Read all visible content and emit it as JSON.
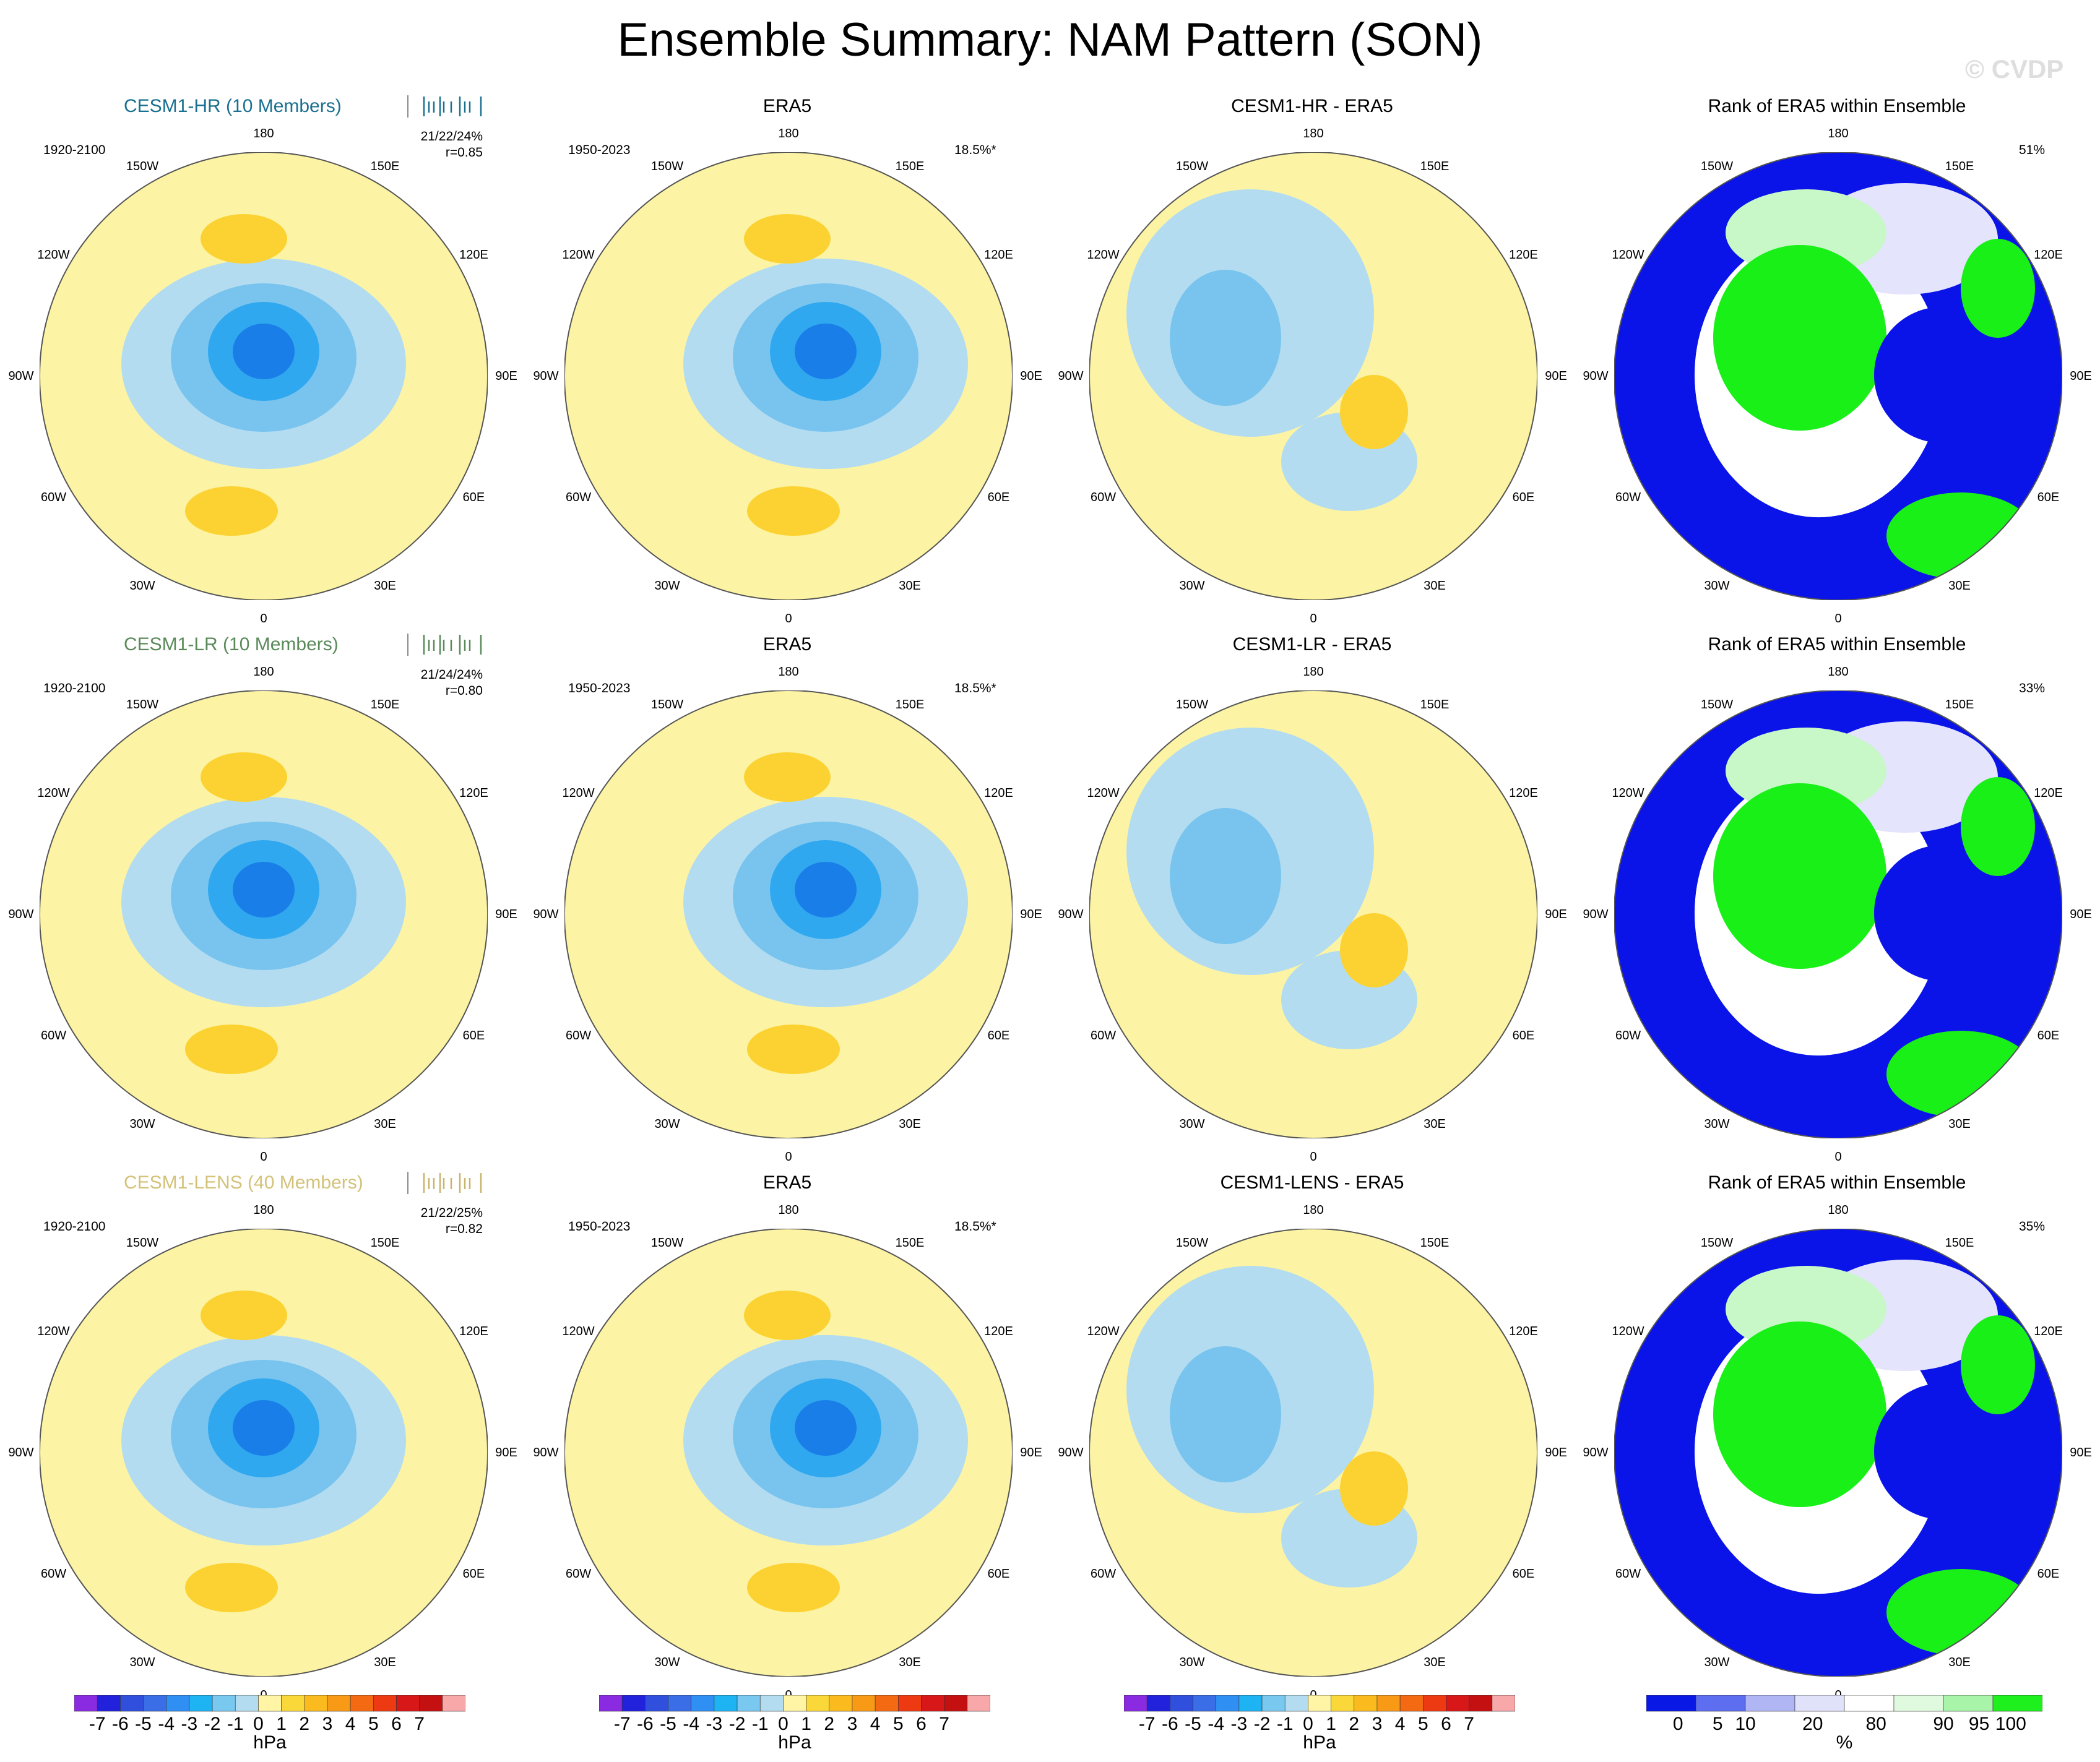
{
  "title": "Ensemble Summary: NAM Pattern (SON)",
  "copyright": "© CVDP",
  "lon_labels": [
    "180",
    "150E",
    "120E",
    "90E",
    "60E",
    "30E",
    "0",
    "30W",
    "60W",
    "90W",
    "120W",
    "150W"
  ],
  "rows": [
    {
      "model": {
        "title": "CESM1-HR (10 Members)",
        "title_color": "#1a7090",
        "years": "1920-2100",
        "stats_line1": "21/22/24%",
        "stats_line2": "r=0.85",
        "tick_color": "#1a7090"
      },
      "obs": {
        "title": "ERA5",
        "years": "1950-2023",
        "percent": "18.5%*"
      },
      "diff": {
        "title": "CESM1-HR - ERA5"
      },
      "rank": {
        "title": "Rank of ERA5 within Ensemble",
        "percent": "51%"
      }
    },
    {
      "model": {
        "title": "CESM1-LR (10 Members)",
        "title_color": "#5a8a5a",
        "years": "1920-2100",
        "stats_line1": "21/24/24%",
        "stats_line2": "r=0.80",
        "tick_color": "#5a8a5a"
      },
      "obs": {
        "title": "ERA5",
        "years": "1950-2023",
        "percent": "18.5%*"
      },
      "diff": {
        "title": "CESM1-LR - ERA5"
      },
      "rank": {
        "title": "Rank of ERA5 within Ensemble",
        "percent": "33%"
      }
    },
    {
      "model": {
        "title": "CESM1-LENS (40 Members)",
        "title_color": "#d4c27a",
        "years": "1920-2100",
        "stats_line1": "21/22/25%",
        "stats_line2": "r=0.82",
        "tick_color": "#c8b46a"
      },
      "obs": {
        "title": "ERA5",
        "years": "1950-2023",
        "percent": "18.5%*"
      },
      "diff": {
        "title": "CESM1-LENS - ERA5"
      },
      "rank": {
        "title": "Rank of ERA5 within Ensemble",
        "percent": "35%"
      }
    }
  ],
  "colorbar_hpa": {
    "labels": [
      "-7",
      "-6",
      "-5",
      "-4",
      "-3",
      "-2",
      "-1",
      "0",
      "1",
      "2",
      "3",
      "4",
      "5",
      "6",
      "7"
    ],
    "unit": "hPa",
    "colors": [
      "#8a2be2",
      "#2222dd",
      "#2f4fdc",
      "#3a6ee6",
      "#2f8ff2",
      "#1eb4f4",
      "#78c8f0",
      "#b4dcf0",
      "#fff5a5",
      "#fbd83a",
      "#fbbb1e",
      "#f89a16",
      "#f46a12",
      "#ee3a12",
      "#d81818",
      "#c41010",
      "#f8a8a8"
    ]
  },
  "colorbar_rank": {
    "labels": [
      "0",
      "5",
      "10",
      "20",
      "80",
      "90",
      "95",
      "100"
    ],
    "unit": "%",
    "colors": [
      "#0a18e6",
      "#5d6ef0",
      "#b0b6f4",
      "#e0e2fa",
      "#ffffff",
      "#e0fae0",
      "#a8f4a8",
      "#1df01d"
    ]
  },
  "palette": {
    "yellow": "#fcf4a4",
    "orange": "#fcd232",
    "lightblue": "#b4dcf0",
    "blue1": "#78c4ee",
    "blue2": "#2fa8f0",
    "blue3": "#1a7ee8",
    "rankblue": "#0a14e8",
    "rankgreen": "#18f018",
    "ranklightgreen": "#c8f8c8",
    "ranklav": "#e4e4fc"
  }
}
